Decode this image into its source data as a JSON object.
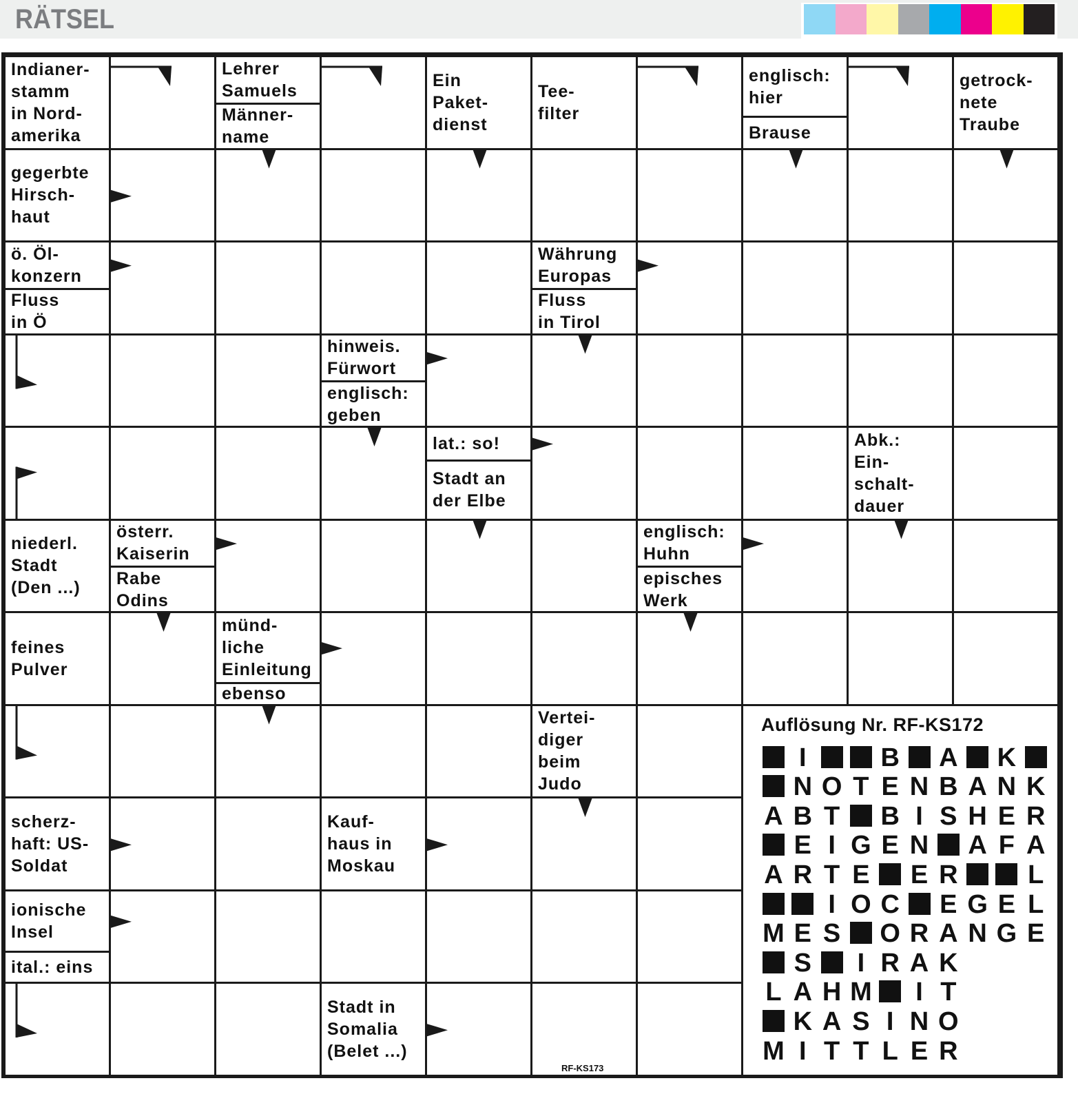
{
  "header": {
    "title": "RÄTSEL",
    "color_bar": [
      "#8fd8f5",
      "#f3a9cb",
      "#fff7a8",
      "#a7a9ac",
      "#00aeef",
      "#ec008c",
      "#fff200",
      "#231f20"
    ]
  },
  "puzzle": {
    "code": "RF-KS173",
    "rows": [
      [
        {
          "clues": [
            {
              "text": "Indianer-\nstamm\nin Nord-\namerika",
              "arrow": "right-down"
            }
          ]
        },
        null,
        {
          "clues": [
            {
              "text": "Lehrer\nSamuels",
              "arrow": "right-down"
            },
            {
              "text": "Männer-\nname",
              "arrow": "down"
            }
          ]
        },
        null,
        {
          "clues": [
            {
              "text": "Ein\nPaket-\ndienst",
              "arrow": "down"
            }
          ]
        },
        {
          "clues": [
            {
              "text": "Tee-\nfilter",
              "arrow": "right-down"
            }
          ]
        },
        null,
        {
          "clues": [
            {
              "text": "englisch:\nhier",
              "arrow": "right-down"
            },
            {
              "text": "Brause",
              "arrow": "down"
            }
          ]
        },
        null,
        {
          "clues": [
            {
              "text": "getrock-\nnete\nTraube",
              "arrow": "down"
            }
          ]
        }
      ],
      [
        {
          "clues": [
            {
              "text": "gegerbte\nHirsch-\nhaut",
              "arrow": "right"
            }
          ]
        },
        null,
        null,
        null,
        null,
        null,
        null,
        null,
        null,
        null
      ],
      [
        {
          "clues": [
            {
              "text": "ö. Öl-\nkonzern",
              "arrow": "right"
            },
            {
              "text": "Fluss\nin Ö",
              "arrow": "down-right"
            }
          ]
        },
        null,
        null,
        null,
        null,
        {
          "clues": [
            {
              "text": "Währung\nEuropas",
              "arrow": "right"
            },
            {
              "text": "Fluss\nin Tirol",
              "arrow": "down"
            }
          ]
        },
        null,
        null,
        null,
        null
      ],
      [
        null,
        null,
        null,
        {
          "clues": [
            {
              "text": "hinweis.\nFürwort",
              "arrow": "right"
            },
            {
              "text": "englisch:\ngeben",
              "arrow": "down"
            }
          ]
        },
        null,
        null,
        null,
        null,
        null,
        null
      ],
      [
        null,
        null,
        null,
        null,
        {
          "clues": [
            {
              "text": "lat.: so!",
              "arrow": "right"
            },
            {
              "text": "Stadt an\nder Elbe",
              "arrow": "down"
            }
          ]
        },
        null,
        null,
        null,
        {
          "clues": [
            {
              "text": "Abk.:\nEin-\nschalt-\ndauer",
              "arrow": "down"
            }
          ]
        },
        null
      ],
      [
        {
          "clues": [
            {
              "text": "niederl.\nStadt\n(Den ...)",
              "arrow": "up-right"
            }
          ]
        },
        {
          "clues": [
            {
              "text": "österr.\nKaiserin",
              "arrow": "right"
            },
            {
              "text": "Rabe\nOdins",
              "arrow": "down"
            }
          ]
        },
        null,
        null,
        null,
        null,
        {
          "clues": [
            {
              "text": "englisch:\nHuhn",
              "arrow": "right"
            },
            {
              "text": "episches\nWerk",
              "arrow": "down"
            }
          ]
        },
        null,
        null,
        null
      ],
      [
        {
          "clues": [
            {
              "text": "feines\nPulver",
              "arrow": "down-right"
            }
          ]
        },
        null,
        {
          "clues": [
            {
              "text": "münd-\nliche\nEinleitung",
              "arrow": "right"
            },
            {
              "text": "ebenso",
              "arrow": "down"
            }
          ]
        },
        null,
        null,
        null,
        null,
        null,
        null,
        null
      ],
      [
        null,
        null,
        null,
        null,
        null,
        {
          "clues": [
            {
              "text": "Vertei-\ndiger\nbeim\nJudo",
              "arrow": "down"
            }
          ]
        },
        null,
        "S",
        "S",
        "S"
      ],
      [
        {
          "clues": [
            {
              "text": "scherz-\nhaft: US-\nSoldat",
              "arrow": "right"
            }
          ]
        },
        null,
        null,
        {
          "clues": [
            {
              "text": "Kauf-\nhaus in\nMoskau",
              "arrow": "right"
            }
          ]
        },
        null,
        null,
        null,
        "S",
        "S",
        "S"
      ],
      [
        {
          "clues": [
            {
              "text": "ionische\nInsel",
              "arrow": "right"
            },
            {
              "text": "ital.: eins",
              "arrow": "down-right"
            }
          ]
        },
        null,
        null,
        null,
        null,
        null,
        null,
        "S",
        "S",
        "S"
      ],
      [
        null,
        null,
        null,
        {
          "clues": [
            {
              "text": "Stadt in\nSomalia\n(Belet ...)",
              "arrow": "right"
            }
          ]
        },
        null,
        null,
        null,
        "S",
        "S",
        "S"
      ]
    ]
  },
  "solution": {
    "title": "Auflösung Nr. RF-KS172",
    "rows": [
      "#I##B#A#K#",
      "#NOTENBANK",
      "ABT#BISHER",
      "#EIGEN#AFA",
      "ARTE#ER##L",
      "##IOC#EGEL",
      "MES#ORANGE",
      "#S#IRAK",
      "LAHM#IT",
      "#KASINO",
      "MITTLER"
    ]
  }
}
